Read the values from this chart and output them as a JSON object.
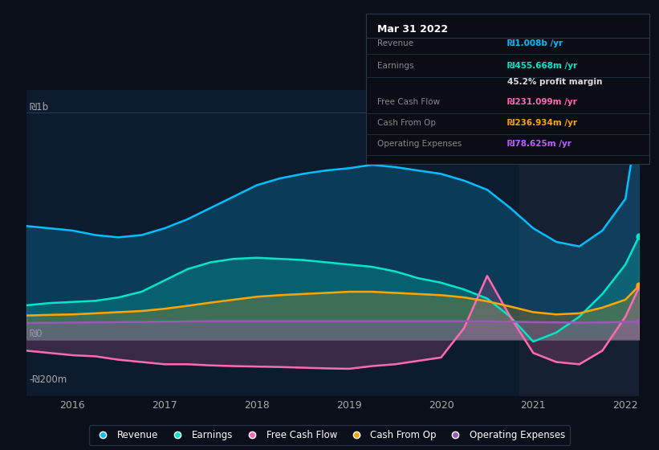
{
  "bg_color": "#0b0f1a",
  "plot_bg_color": "#0d1b2e",
  "highlight_bg_color": "#162033",
  "title": "Mar 31 2022",
  "tooltip": {
    "title": "Mar 31 2022",
    "rows": [
      {
        "label": "Revenue",
        "value": "₪1.008b /yr",
        "color": "#00bfff"
      },
      {
        "label": "Earnings",
        "value": "₪455.668m /yr",
        "color": "#00e5cc"
      },
      {
        "label": "",
        "value": "45.2% profit margin",
        "color": "#ffffff"
      },
      {
        "label": "Free Cash Flow",
        "value": "₪231.099m /yr",
        "color": "#ff69b4"
      },
      {
        "label": "Cash From Op",
        "value": "₪236.934m /yr",
        "color": "#ffa500"
      },
      {
        "label": "Operating Expenses",
        "value": "₪78.625m /yr",
        "color": "#bf5fff"
      }
    ]
  },
  "y_label_1b": "₪1b",
  "y_label_0": "₪0",
  "y_label_neg200m": "-₪200m",
  "x_labels": [
    "2016",
    "2017",
    "2018",
    "2019",
    "2020",
    "2021",
    "2022"
  ],
  "colors": {
    "revenue": "#00bfff",
    "earnings": "#00e5cc",
    "free_cash_flow": "#ff69b4",
    "cash_from_op": "#ffa500",
    "operating_expenses": "#9b59b6"
  },
  "legend": [
    {
      "label": "Revenue",
      "color": "#00bfff"
    },
    {
      "label": "Earnings",
      "color": "#00e5cc"
    },
    {
      "label": "Free Cash Flow",
      "color": "#ff69b4"
    },
    {
      "label": "Cash From Op",
      "color": "#ffa500"
    },
    {
      "label": "Operating Expenses",
      "color": "#9b59b6"
    }
  ],
  "ylim": [
    -250000000,
    1100000000
  ],
  "x_years": [
    2015.5,
    2015.75,
    2016.0,
    2016.25,
    2016.5,
    2016.75,
    2017.0,
    2017.25,
    2017.5,
    2017.75,
    2018.0,
    2018.25,
    2018.5,
    2018.75,
    2019.0,
    2019.25,
    2019.5,
    2019.75,
    2020.0,
    2020.25,
    2020.5,
    2020.75,
    2021.0,
    2021.25,
    2021.5,
    2021.75,
    2022.0,
    2022.15
  ],
  "revenue": [
    500000000,
    490000000,
    480000000,
    460000000,
    450000000,
    460000000,
    490000000,
    530000000,
    580000000,
    630000000,
    680000000,
    710000000,
    730000000,
    745000000,
    755000000,
    770000000,
    760000000,
    745000000,
    730000000,
    700000000,
    660000000,
    580000000,
    490000000,
    430000000,
    410000000,
    480000000,
    620000000,
    1008000000
  ],
  "earnings": [
    150000000,
    160000000,
    165000000,
    170000000,
    185000000,
    210000000,
    260000000,
    310000000,
    340000000,
    355000000,
    360000000,
    355000000,
    350000000,
    340000000,
    330000000,
    320000000,
    300000000,
    270000000,
    250000000,
    220000000,
    180000000,
    100000000,
    -10000000,
    30000000,
    100000000,
    200000000,
    330000000,
    455668000
  ],
  "free_cash_flow": [
    -50000000,
    -60000000,
    -70000000,
    -75000000,
    -90000000,
    -100000000,
    -110000000,
    -110000000,
    -115000000,
    -118000000,
    -120000000,
    -122000000,
    -125000000,
    -128000000,
    -130000000,
    -118000000,
    -110000000,
    -95000000,
    -80000000,
    50000000,
    280000000,
    100000000,
    -60000000,
    -100000000,
    -110000000,
    -50000000,
    100000000,
    231099000
  ],
  "cash_from_op": [
    105000000,
    108000000,
    110000000,
    115000000,
    120000000,
    125000000,
    135000000,
    148000000,
    162000000,
    175000000,
    188000000,
    195000000,
    200000000,
    205000000,
    210000000,
    210000000,
    205000000,
    200000000,
    195000000,
    185000000,
    168000000,
    145000000,
    120000000,
    110000000,
    115000000,
    140000000,
    175000000,
    236934000
  ],
  "operating_expenses": [
    72000000,
    73000000,
    74000000,
    75000000,
    76000000,
    77000000,
    78000000,
    79000000,
    80000000,
    80000000,
    80000000,
    80000000,
    80000000,
    80000000,
    80000000,
    80000000,
    80000000,
    80000000,
    80000000,
    80000000,
    80000000,
    78000000,
    76000000,
    75000000,
    74000000,
    75000000,
    77000000,
    78625000
  ]
}
